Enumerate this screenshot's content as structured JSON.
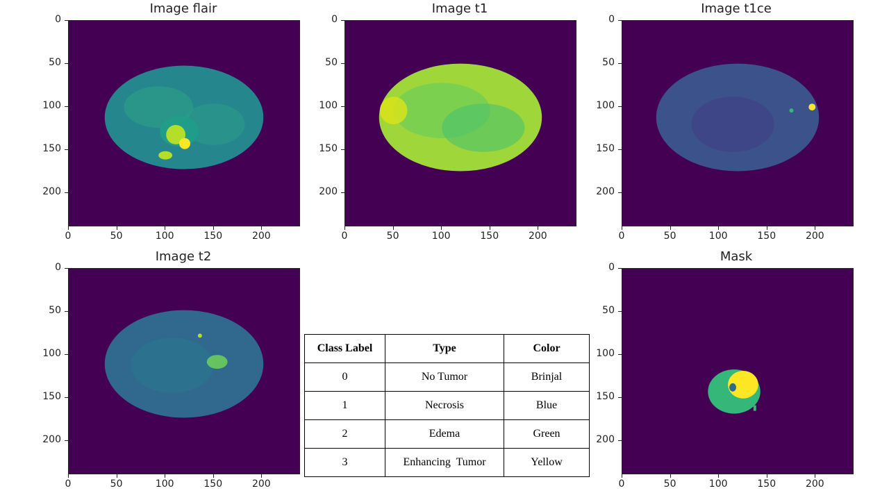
{
  "panels": [
    {
      "id": "flair",
      "title": "Image flair"
    },
    {
      "id": "t1",
      "title": "Image t1"
    },
    {
      "id": "t1ce",
      "title": "Image t1ce"
    },
    {
      "id": "t2",
      "title": "Image t2"
    },
    {
      "id": "mask",
      "title": "Mask"
    }
  ],
  "axes": {
    "y_ticks": [
      "0",
      "50",
      "100",
      "150",
      "200"
    ],
    "x_ticks": [
      "0",
      "50",
      "100",
      "150",
      "200"
    ]
  },
  "colors": {
    "background": "#440154",
    "flair": "#26868e",
    "t1": "#9fd63a",
    "t1ce": "#3b528b",
    "t2": "#31688e",
    "mask_edema": "#35b779",
    "mask_enhancing": "#fde725",
    "mask_necrosis": "#31688e"
  },
  "legend_table": {
    "headers": [
      "Class Label",
      "Type",
      "Color"
    ],
    "rows": [
      [
        "0",
        "No Tumor",
        "Brinjal"
      ],
      [
        "1",
        "Necrosis",
        "Blue"
      ],
      [
        "2",
        "Edema",
        "Green"
      ],
      [
        "3",
        "Enhancing  Tumor",
        "Yellow"
      ]
    ]
  }
}
